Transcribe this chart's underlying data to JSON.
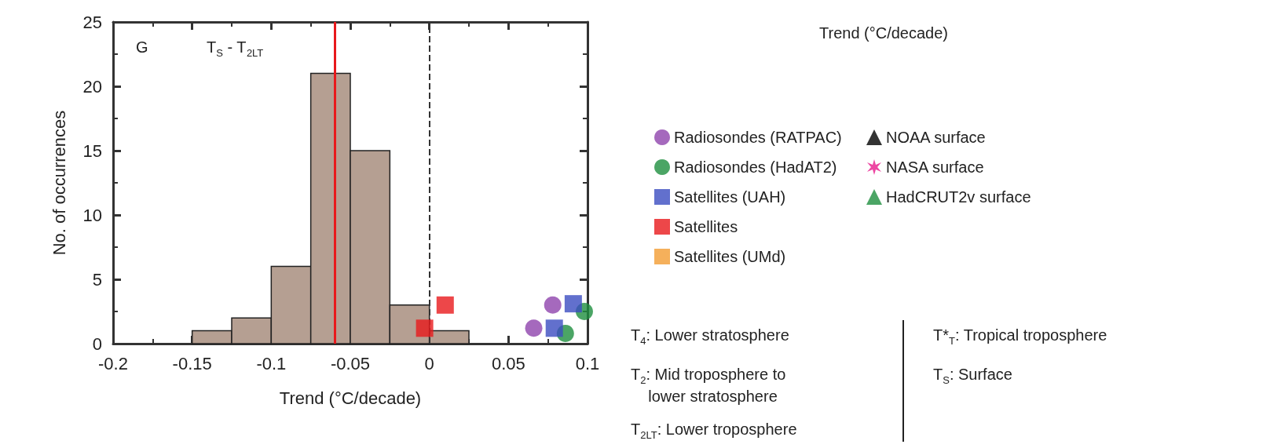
{
  "chart_data": {
    "type": "histogram",
    "xlabel": "Trend (°C/decade)",
    "ylabel": "No. of occurrences",
    "bins": [
      -0.15,
      -0.125,
      -0.1,
      -0.075,
      -0.05,
      -0.025,
      0,
      0.025
    ],
    "values": [
      1,
      2,
      6,
      21,
      15,
      3,
      1
    ],
    "color": "#b59f92",
    "series": [
      {
        "name": "Radiosondes (RATPAC)",
        "type": "scatter",
        "marker": "circle",
        "color": "#8e44ad",
        "x": [
          0.066,
          0.078
        ],
        "values": [
          1.2,
          3
        ]
      },
      {
        "name": "Radiosondes (HadAT2)",
        "type": "scatter",
        "marker": "circle",
        "color": "#1e8e3e",
        "x": [
          0.086,
          0.098
        ],
        "values": [
          0.8,
          2.5
        ]
      },
      {
        "name": "Satellites (UAH)",
        "type": "scatter",
        "marker": "square",
        "color": "#3b4cc0",
        "x": [
          0.079,
          0.091
        ],
        "values": [
          1.2,
          3.1
        ]
      },
      {
        "name": "Satellites",
        "type": "scatter",
        "marker": "square",
        "color": "#e8191c",
        "x": [
          -0.003,
          0.01
        ],
        "values": [
          1.2,
          3
        ]
      },
      {
        "name": "Satellites (UMd)",
        "type": "scatter",
        "marker": "square",
        "color": "#f39c32"
      },
      {
        "name": "NOAA surface",
        "type": "scatter",
        "marker": "triangle",
        "color": "#000000"
      },
      {
        "name": "NASA surface",
        "type": "scatter",
        "marker": "star",
        "color": "#e8198c"
      },
      {
        "name": "HadCRUT2v surface",
        "type": "scatter",
        "marker": "triangle",
        "color": "#1e8e3e"
      }
    ],
    "xlim": [
      -0.2,
      0.1
    ],
    "xticks": [
      -0.2,
      -0.15,
      -0.1,
      -0.05,
      0,
      0.05,
      0.1
    ],
    "ylim": [
      0,
      25
    ],
    "yticks": [
      0,
      5,
      10,
      15,
      20,
      25
    ],
    "grid": false,
    "legend": "right",
    "ref_lines": [
      {
        "axis": "x",
        "value": -0.061,
        "color": "#e8191c",
        "line_style": "solid"
      },
      {
        "axis": "x",
        "value": 0,
        "color": "#333333",
        "line_style": "dashed"
      }
    ],
    "annotations": [
      "G",
      "T$_{S}$ - T$_{2LT}$",
      "Trend (°C/decade)",
      "T$_{4}$: Lower stratosphere",
      "T$_{2}$: Mid troposphere to\n    lower stratosphere",
      "T$_{2LT}$: Lower troposphere",
      "T*$_{T}$: Tropical troposphere",
      "T$_{S}$: Surface"
    ]
  }
}
